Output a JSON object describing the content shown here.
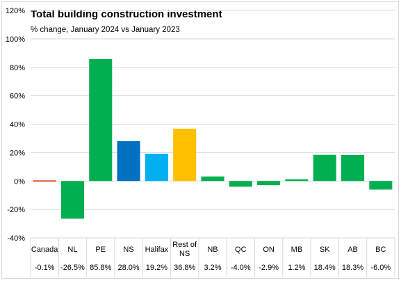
{
  "chart_data": {
    "type": "bar",
    "title": "Total building construction investment",
    "subtitle": "% change, January 2024 vs January 2023",
    "categories": [
      "Canada",
      "NL",
      "PE",
      "NS",
      "Halifax",
      "Rest of NS",
      "NB",
      "QC",
      "ON",
      "MB",
      "SK",
      "AB",
      "BC"
    ],
    "values": [
      -0.1,
      -26.5,
      85.8,
      28.0,
      19.2,
      36.8,
      3.2,
      -4.0,
      -2.9,
      1.2,
      18.4,
      18.3,
      -6.0
    ],
    "value_labels": [
      "-0.1%",
      "-26.5%",
      "85.8%",
      "28.0%",
      "19.2%",
      "36.8%",
      "3.2%",
      "-4.0%",
      "-2.9%",
      "1.2%",
      "18.4%",
      "18.3%",
      "-6.0%"
    ],
    "colors": [
      "#e8503a",
      "#00b050",
      "#00b050",
      "#0070c0",
      "#00b0f0",
      "#ffc000",
      "#00b050",
      "#00b050",
      "#00b050",
      "#00b050",
      "#00b050",
      "#00b050",
      "#00b050"
    ],
    "ylim": [
      -40,
      120
    ],
    "yticks": [
      -40,
      -20,
      0,
      20,
      40,
      60,
      80,
      100,
      120
    ],
    "ytick_labels": [
      "-40%",
      "-20%",
      "0%",
      "20%",
      "40%",
      "60%",
      "80%",
      "100%",
      "120%"
    ],
    "xlabel": "",
    "ylabel": "",
    "grid": true,
    "legend": "none"
  }
}
